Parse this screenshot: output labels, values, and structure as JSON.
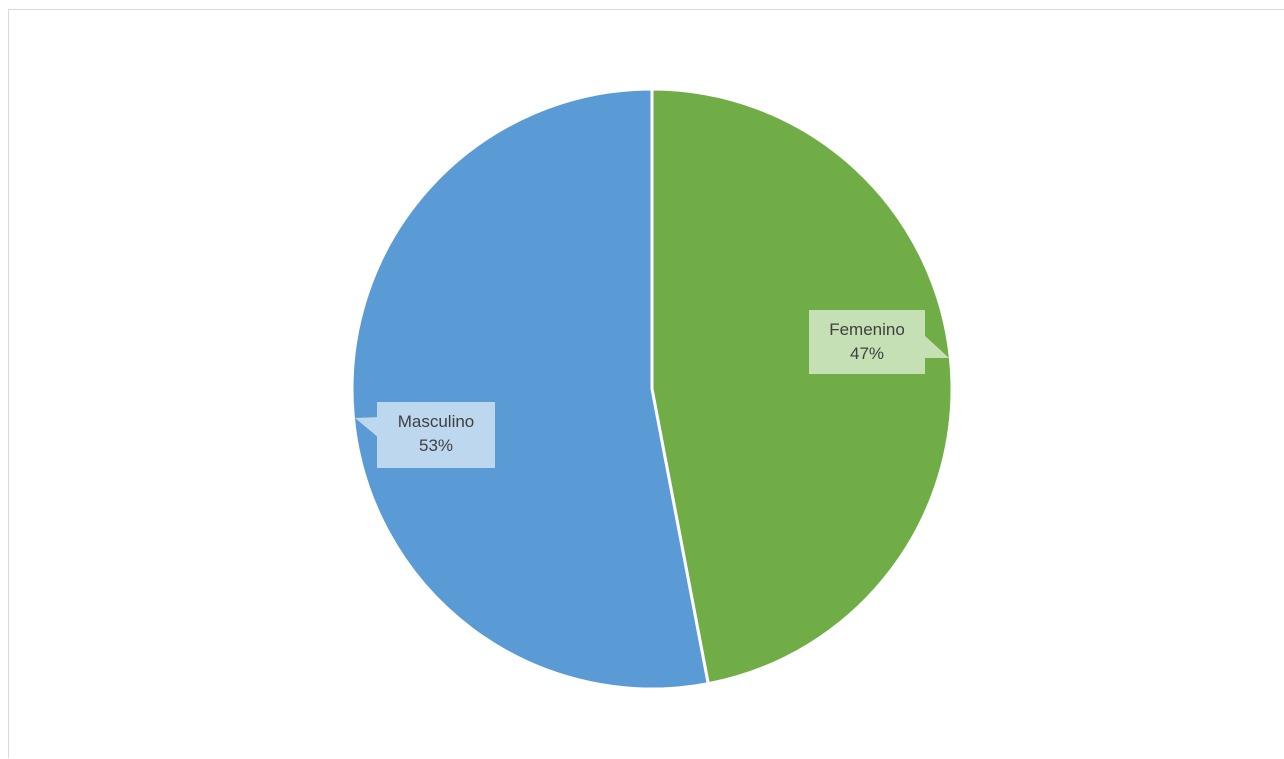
{
  "chart_data": {
    "type": "pie",
    "title": "",
    "slices": [
      {
        "label": "Femenino",
        "value": 47,
        "value_label": "47%",
        "color": "#70ad47",
        "label_bg": "#c5e0b4"
      },
      {
        "label": "Masculino",
        "value": 53,
        "value_label": "53%",
        "color": "#5b9bd5",
        "label_bg": "#bdd7ee"
      }
    ],
    "start_angle": "12 o'clock",
    "direction": "clockwise",
    "legend": "none",
    "data_labels": "callouts with category name and percentage"
  }
}
